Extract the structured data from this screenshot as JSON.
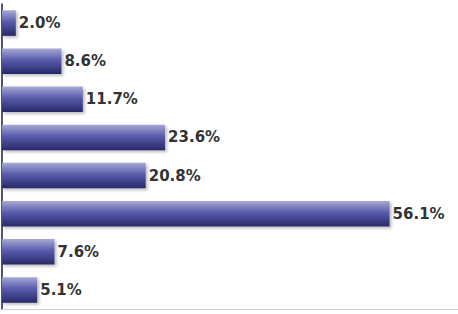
{
  "chart_data": {
    "type": "bar",
    "orientation": "horizontal",
    "categories": [
      null,
      null,
      null,
      null,
      null,
      null,
      null,
      null
    ],
    "values": [
      2.0,
      8.6,
      11.7,
      23.6,
      20.8,
      56.1,
      7.6,
      5.1
    ],
    "value_labels": [
      "2.0%",
      "8.6%",
      "11.7%",
      "23.6%",
      "20.8%",
      "56.1%",
      "7.6%",
      "5.1%"
    ],
    "color": "#3b3f9e",
    "xlim": [
      0,
      66
    ],
    "data_labels": true,
    "tick_labels": false,
    "grid": false
  }
}
